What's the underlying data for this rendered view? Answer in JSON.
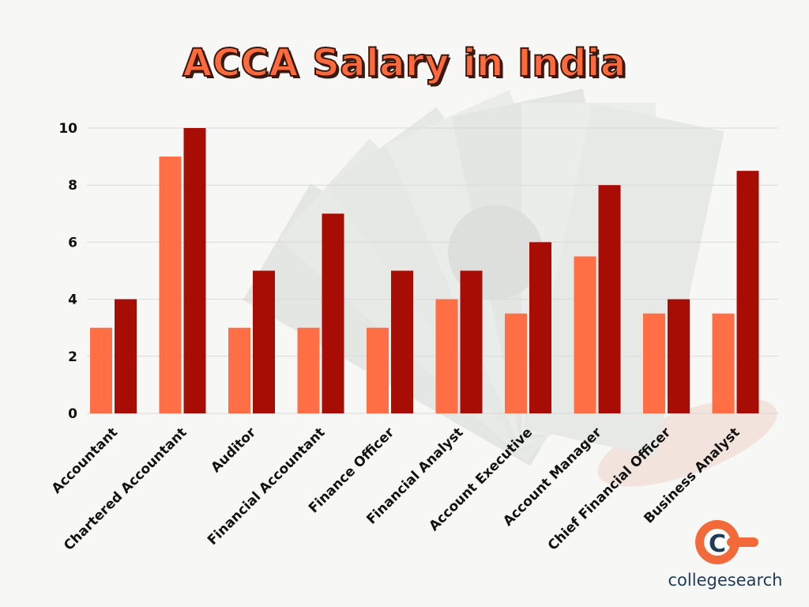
{
  "title": "ACCA Salary in India",
  "logo": {
    "text": "collegesearch",
    "accent": "#f26a3a",
    "text_color": "#1f3b57"
  },
  "colors": {
    "series_1": "#ff6e45",
    "series_2": "#a80d05"
  },
  "chart_data": {
    "type": "bar",
    "title": "ACCA Salary in India",
    "xlabel": "",
    "ylabel": "",
    "ylim": [
      0,
      10
    ],
    "yticks": [
      0,
      2,
      4,
      6,
      8,
      10
    ],
    "grid": true,
    "legend": "none",
    "categories": [
      "Accountant",
      "Chartered Accountant",
      "Auditor",
      "Financial Accountant",
      "Finance Officer",
      "Financial Analyst",
      "Account Executive",
      "Account Manager",
      "Chief Financial Officer",
      "Business Analyst"
    ],
    "series": [
      {
        "values": [
          3,
          9,
          3,
          3,
          3,
          4,
          3.5,
          5.5,
          3.5,
          3.5
        ]
      },
      {
        "values": [
          4,
          10,
          5,
          7,
          5,
          5,
          6,
          8,
          4,
          8.5
        ]
      }
    ]
  }
}
